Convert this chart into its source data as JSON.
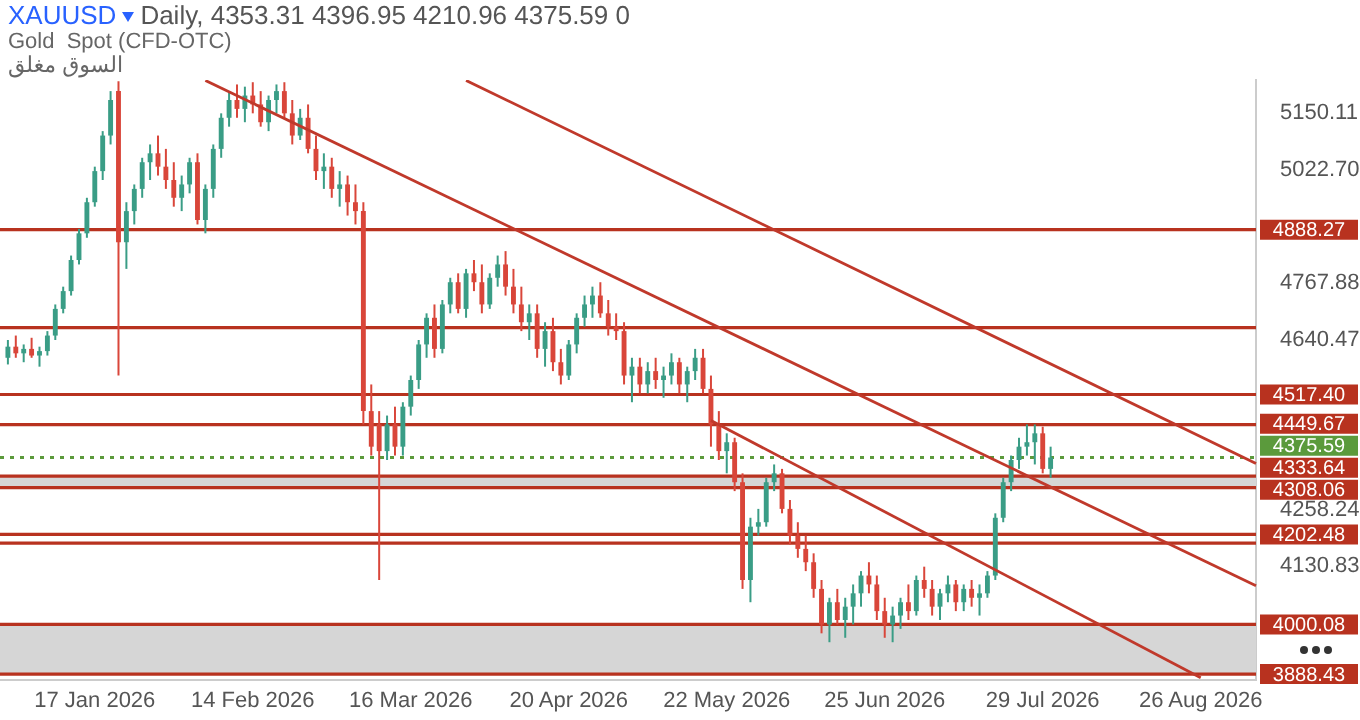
{
  "chart_data": {
    "type": "candlestick",
    "title": "XAUUSD",
    "subtitle": "Daily, 4353.31 4396.95 4210.96 4375.59 0",
    "annotations": [
      "Gold  Spot (CFD-OTC)",
      "السوق مغلق"
    ],
    "categories": [
      null,
      null,
      null,
      null,
      null,
      null,
      null,
      null,
      null,
      null,
      null,
      null,
      "17 Jan 2026",
      null,
      null,
      null,
      null,
      null,
      null,
      null,
      null,
      null,
      null,
      null,
      null,
      null,
      null,
      null,
      null,
      null,
      null,
      null,
      "14 Feb 2026",
      null,
      null,
      null,
      null,
      null,
      null,
      null,
      null,
      null,
      null,
      null,
      null,
      null,
      null,
      null,
      null,
      null,
      null,
      null,
      "16 Mar 2026",
      null,
      null,
      null,
      null,
      null,
      null,
      null,
      null,
      null,
      null,
      null,
      null,
      null,
      null,
      null,
      null,
      null,
      null,
      null,
      "20 Apr 2026",
      null,
      null,
      null,
      null,
      null,
      null,
      null,
      null,
      null,
      null,
      null,
      null,
      null,
      null,
      null,
      null,
      null,
      null,
      null,
      "22 May 2026",
      null,
      null,
      null,
      null,
      null,
      null,
      null,
      null,
      null,
      null,
      null,
      null,
      null,
      null,
      null,
      null,
      null,
      null,
      null,
      "25 Jun 2026",
      null,
      null,
      null,
      null,
      null,
      null,
      null,
      null,
      null,
      null,
      null,
      null,
      null,
      null,
      null,
      null,
      null,
      null,
      null,
      "29 Jul 2026",
      null,
      null,
      null,
      null,
      null,
      null,
      null,
      null,
      null,
      null,
      null,
      null,
      null,
      null,
      null,
      null,
      null,
      null,
      null,
      "26 Aug 2026",
      null,
      null,
      null,
      null,
      null,
      null,
      null
    ],
    "ohlc": [
      null,
      [
        4600,
        4640,
        4585,
        4625
      ],
      [
        4625,
        4650,
        4600,
        4610
      ],
      [
        4610,
        4630,
        4590,
        4620
      ],
      [
        4620,
        4645,
        4600,
        4605
      ],
      [
        4605,
        4625,
        4580,
        4615
      ],
      [
        4615,
        4660,
        4605,
        4650
      ],
      [
        4650,
        4720,
        4640,
        4710
      ],
      [
        4710,
        4760,
        4700,
        4750
      ],
      [
        4750,
        4830,
        4740,
        4820
      ],
      [
        4820,
        4890,
        4810,
        4880
      ],
      [
        4880,
        4960,
        4870,
        4950
      ],
      [
        4950,
        5030,
        4940,
        5020
      ],
      [
        5020,
        5110,
        5000,
        5100
      ],
      [
        5100,
        5200,
        5080,
        5180
      ],
      [
        5200,
        5222,
        4560,
        4860
      ],
      [
        4860,
        4950,
        4800,
        4930
      ],
      [
        4930,
        4990,
        4900,
        4980
      ],
      [
        4980,
        5050,
        4960,
        5040
      ],
      [
        5040,
        5080,
        5000,
        5060
      ],
      [
        5060,
        5100,
        5010,
        5030
      ],
      [
        5030,
        5070,
        4980,
        5000
      ],
      [
        5000,
        5040,
        4940,
        4960
      ],
      [
        4960,
        5010,
        4930,
        4990
      ],
      [
        4990,
        5050,
        4970,
        5040
      ],
      [
        5040,
        5060,
        4900,
        4910
      ],
      [
        4910,
        4990,
        4880,
        4980
      ],
      [
        4980,
        5080,
        4960,
        5070
      ],
      [
        5070,
        5150,
        5050,
        5140
      ],
      [
        5140,
        5200,
        5120,
        5180
      ],
      [
        5180,
        5215,
        5140,
        5160
      ],
      [
        5160,
        5210,
        5130,
        5190
      ],
      [
        5190,
        5220,
        5150,
        5170
      ],
      [
        5170,
        5200,
        5120,
        5130
      ],
      [
        5130,
        5190,
        5110,
        5180
      ],
      [
        5180,
        5215,
        5150,
        5200
      ],
      [
        5200,
        5220,
        5140,
        5150
      ],
      [
        5150,
        5180,
        5080,
        5100
      ],
      [
        5100,
        5160,
        5090,
        5140
      ],
      [
        5140,
        5170,
        5060,
        5070
      ],
      [
        5070,
        5100,
        5000,
        5020
      ],
      [
        5020,
        5060,
        4980,
        5030
      ],
      [
        5030,
        5050,
        4960,
        4980
      ],
      [
        4980,
        5020,
        4940,
        4990
      ],
      [
        4990,
        5010,
        4920,
        4950
      ],
      [
        4950,
        4990,
        4900,
        4930
      ],
      [
        4930,
        4950,
        4450,
        4480
      ],
      [
        4480,
        4540,
        4380,
        4400
      ],
      [
        4450,
        4480,
        4100,
        4390
      ],
      [
        4390,
        4470,
        4370,
        4450
      ],
      [
        4450,
        4490,
        4380,
        4400
      ],
      [
        4400,
        4500,
        4380,
        4490
      ],
      [
        4490,
        4560,
        4470,
        4550
      ],
      [
        4550,
        4640,
        4530,
        4630
      ],
      [
        4630,
        4700,
        4600,
        4690
      ],
      [
        4690,
        4720,
        4600,
        4620
      ],
      [
        4620,
        4730,
        4610,
        4720
      ],
      [
        4720,
        4780,
        4700,
        4770
      ],
      [
        4770,
        4790,
        4700,
        4710
      ],
      [
        4710,
        4800,
        4690,
        4790
      ],
      [
        4790,
        4820,
        4750,
        4770
      ],
      [
        4770,
        4810,
        4700,
        4720
      ],
      [
        4720,
        4790,
        4710,
        4780
      ],
      [
        4780,
        4830,
        4760,
        4810
      ],
      [
        4810,
        4840,
        4740,
        4760
      ],
      [
        4760,
        4800,
        4700,
        4720
      ],
      [
        4720,
        4760,
        4660,
        4680
      ],
      [
        4680,
        4720,
        4640,
        4700
      ],
      [
        4700,
        4720,
        4600,
        4620
      ],
      [
        4620,
        4680,
        4580,
        4660
      ],
      [
        4660,
        4690,
        4570,
        4590
      ],
      [
        4590,
        4620,
        4540,
        4560
      ],
      [
        4560,
        4640,
        4550,
        4630
      ],
      [
        4630,
        4700,
        4610,
        4690
      ],
      [
        4690,
        4740,
        4670,
        4720
      ],
      [
        4720,
        4760,
        4690,
        4740
      ],
      [
        4740,
        4770,
        4690,
        4700
      ],
      [
        4700,
        4730,
        4650,
        4670
      ],
      [
        4670,
        4700,
        4640,
        4660
      ],
      [
        4660,
        4680,
        4540,
        4560
      ],
      [
        4560,
        4600,
        4500,
        4580
      ],
      [
        4580,
        4600,
        4520,
        4540
      ],
      [
        4540,
        4590,
        4520,
        4570
      ],
      [
        4570,
        4600,
        4530,
        4550
      ],
      [
        4550,
        4580,
        4510,
        4560
      ],
      [
        4560,
        4610,
        4540,
        4590
      ],
      [
        4590,
        4600,
        4520,
        4540
      ],
      [
        4540,
        4580,
        4500,
        4570
      ],
      [
        4570,
        4620,
        4550,
        4600
      ],
      [
        4600,
        4620,
        4520,
        4530
      ],
      [
        4530,
        4560,
        4400,
        4450
      ],
      [
        4450,
        4480,
        4370,
        4390
      ],
      [
        4390,
        4430,
        4340,
        4410
      ],
      [
        4410,
        4420,
        4300,
        4320
      ],
      [
        4320,
        4340,
        4080,
        4100
      ],
      [
        4100,
        4240,
        4050,
        4220
      ],
      [
        4220,
        4260,
        4200,
        4230
      ],
      [
        4230,
        4330,
        4220,
        4320
      ],
      [
        4320,
        4360,
        4300,
        4340
      ],
      [
        4340,
        4350,
        4250,
        4260
      ],
      [
        4260,
        4280,
        4180,
        4200
      ],
      [
        4200,
        4230,
        4150,
        4170
      ],
      [
        4170,
        4200,
        4120,
        4140
      ],
      [
        4140,
        4160,
        4060,
        4080
      ],
      [
        4080,
        4100,
        3980,
        4000
      ],
      [
        4000,
        4060,
        3960,
        4050
      ],
      [
        4050,
        4080,
        4000,
        4010
      ],
      [
        4010,
        4060,
        3970,
        4040
      ],
      [
        4040,
        4090,
        4000,
        4070
      ],
      [
        4070,
        4120,
        4040,
        4110
      ],
      [
        4110,
        4140,
        4070,
        4090
      ],
      [
        4090,
        4110,
        4010,
        4030
      ],
      [
        4030,
        4060,
        3970,
        4000
      ],
      [
        4000,
        4040,
        3960,
        4020
      ],
      [
        4020,
        4060,
        3990,
        4050
      ],
      [
        4050,
        4090,
        4010,
        4030
      ],
      [
        4030,
        4110,
        4020,
        4100
      ],
      [
        4100,
        4130,
        4060,
        4080
      ],
      [
        4080,
        4100,
        4020,
        4040
      ],
      [
        4040,
        4080,
        4010,
        4070
      ],
      [
        4070,
        4110,
        4050,
        4090
      ],
      [
        4090,
        4100,
        4030,
        4050
      ],
      [
        4050,
        4090,
        4030,
        4080
      ],
      [
        4080,
        4100,
        4040,
        4060
      ],
      [
        4060,
        4090,
        4020,
        4070
      ],
      [
        4070,
        4120,
        4060,
        4110
      ],
      [
        4110,
        4250,
        4100,
        4240
      ],
      [
        4240,
        4330,
        4230,
        4320
      ],
      [
        4320,
        4380,
        4300,
        4370
      ],
      [
        4370,
        4420,
        4350,
        4400
      ],
      [
        4400,
        4450,
        4380,
        4410
      ],
      [
        4410,
        4450,
        4360,
        4430
      ],
      [
        4430,
        4445,
        4340,
        4350
      ],
      [
        4350,
        4400,
        4330,
        4375.59
      ],
      null,
      null,
      null,
      null,
      null,
      null,
      null,
      null,
      null,
      null,
      null,
      null,
      null,
      null,
      null,
      null,
      null,
      null,
      null,
      null,
      null,
      null,
      null,
      null,
      null,
      null
    ],
    "series": [
      {
        "type": "line",
        "color": "#c0392b",
        "values": [
          null,
          null,
          null,
          null,
          null,
          null,
          null,
          null,
          null,
          null,
          null,
          null,
          null,
          null,
          null,
          null,
          null,
          null,
          null,
          null,
          null,
          null,
          null,
          null,
          null,
          null,
          null,
          null,
          null,
          null,
          null,
          null,
          null,
          null,
          null,
          null,
          null,
          null,
          null,
          null,
          null,
          null,
          null,
          null,
          null,
          null,
          null,
          null,
          null,
          null,
          null,
          null,
          null,
          null,
          null,
          null,
          null,
          null,
          null,
          5224,
          null,
          null,
          null,
          null,
          null,
          null,
          null,
          null,
          null,
          null,
          null,
          null,
          null,
          null,
          null,
          null,
          null,
          null,
          null,
          null,
          null,
          null,
          null,
          null,
          null,
          null,
          null,
          null,
          null,
          null,
          null,
          null,
          null,
          null,
          null,
          null,
          null,
          null,
          null,
          null,
          null,
          null,
          null,
          null,
          null,
          null,
          null,
          null,
          null,
          null,
          null,
          null,
          null,
          null,
          null,
          null,
          null,
          null,
          null,
          null,
          null,
          null,
          null,
          null,
          null,
          null,
          null,
          null,
          null,
          null,
          null,
          null,
          null,
          null,
          null,
          null,
          null,
          null,
          null,
          null,
          null,
          null,
          null,
          null,
          null,
          null,
          null,
          null,
          null,
          null,
          null,
          null,
          null,
          null,
          null,
          null,
          null,
          null,
          null,
          4362
        ]
      },
      {
        "type": "line",
        "color": "#c0392b",
        "values": [
          null,
          null,
          null,
          null,
          null,
          null,
          null,
          null,
          null,
          null,
          null,
          null,
          null,
          null,
          null,
          null,
          null,
          null,
          null,
          null,
          null,
          null,
          null,
          null,
          null,
          null,
          5224,
          null,
          null,
          null,
          null,
          null,
          null,
          null,
          null,
          null,
          null,
          null,
          null,
          null,
          null,
          null,
          null,
          null,
          null,
          null,
          null,
          null,
          null,
          null,
          null,
          null,
          null,
          null,
          null,
          null,
          null,
          null,
          null,
          null,
          null,
          null,
          null,
          null,
          null,
          null,
          null,
          null,
          null,
          null,
          null,
          null,
          null,
          null,
          null,
          null,
          null,
          null,
          null,
          null,
          null,
          null,
          null,
          null,
          null,
          null,
          null,
          null,
          null,
          null,
          null,
          null,
          null,
          null,
          null,
          null,
          null,
          null,
          null,
          null,
          null,
          null,
          null,
          null,
          null,
          null,
          null,
          null,
          null,
          null,
          null,
          null,
          null,
          null,
          null,
          null,
          null,
          null,
          null,
          null,
          null,
          null,
          null,
          null,
          null,
          null,
          null,
          null,
          null,
          null,
          null,
          null,
          null,
          null,
          null,
          null,
          null,
          null,
          null,
          null,
          null,
          null,
          null,
          null,
          null,
          null,
          null,
          null,
          null,
          null,
          null,
          null,
          null,
          null,
          null,
          null,
          null,
          null,
          null,
          4087
        ]
      },
      {
        "type": "line",
        "color": "#c0392b",
        "values": [
          null,
          null,
          null,
          null,
          null,
          null,
          null,
          null,
          null,
          null,
          null,
          null,
          null,
          null,
          null,
          null,
          null,
          null,
          null,
          null,
          null,
          null,
          null,
          null,
          null,
          null,
          null,
          null,
          null,
          null,
          null,
          null,
          null,
          null,
          null,
          null,
          null,
          null,
          null,
          null,
          null,
          null,
          null,
          null,
          null,
          null,
          null,
          null,
          null,
          null,
          null,
          null,
          null,
          null,
          null,
          null,
          null,
          null,
          null,
          null,
          null,
          null,
          null,
          null,
          null,
          null,
          null,
          null,
          null,
          null,
          null,
          null,
          null,
          null,
          null,
          null,
          null,
          null,
          null,
          null,
          null,
          null,
          null,
          null,
          null,
          null,
          null,
          null,
          null,
          null,
          4459,
          null,
          null,
          null,
          null,
          null,
          null,
          null,
          null,
          null,
          null,
          null,
          null,
          null,
          null,
          null,
          null,
          null,
          null,
          null,
          null,
          null,
          null,
          null,
          null,
          null,
          null,
          null,
          null,
          null,
          null,
          null,
          null,
          null,
          null,
          null,
          null,
          null,
          null,
          null,
          null,
          null,
          null,
          null,
          null,
          null,
          null,
          null,
          null,
          null,
          null,
          null,
          null,
          null,
          null,
          null,
          null,
          null,
          null,
          null,
          null,
          null,
          3880,
          null,
          null,
          null,
          null,
          null,
          null,
          null
        ]
      }
    ],
    "ylim": [
      3875,
      5225
    ],
    "yticks": [
      {
        "value": 4130.83,
        "label": "4130.83"
      },
      {
        "value": 4258.24,
        "label": "4258.24"
      },
      {
        "value": 4640.47,
        "label": "4640.47"
      },
      {
        "value": 4767.88,
        "label": "4767.88"
      },
      {
        "value": 5022.7,
        "label": "5022.70"
      },
      {
        "value": 5150.11,
        "label": "5150.11"
      }
    ],
    "bands": [
      {
        "axis": "y",
        "from": 4308.06,
        "to": 4333.64,
        "color": "#d6d6d6"
      },
      {
        "axis": "y",
        "from": 3888.43,
        "to": 4000.08,
        "color": "#d6d6d6"
      }
    ],
    "ref_lines": [
      {
        "axis": "y",
        "value": 4888.27,
        "label": "4888.27",
        "color": "#b8321f"
      },
      {
        "axis": "y",
        "value": 4668,
        "label": null,
        "color": "#b8321f"
      },
      {
        "axis": "y",
        "value": 4517.4,
        "label": "4517.40",
        "color": "#b8321f"
      },
      {
        "axis": "y",
        "value": 4449.67,
        "label": "4449.67",
        "color": "#b8321f"
      },
      {
        "axis": "y",
        "value": 4375.59,
        "label": "4375.59",
        "color": "#5b9a3c",
        "line_style": "dotted"
      },
      {
        "axis": "y",
        "value": 4333.64,
        "label": "4333.64",
        "color": "#b8321f"
      },
      {
        "axis": "y",
        "value": 4308.06,
        "label": "4308.06",
        "color": "#b8321f"
      },
      {
        "axis": "y",
        "value": 4202.48,
        "label": "4202.48",
        "color": "#b8321f"
      },
      {
        "axis": "y",
        "value": 4183,
        "label": null,
        "color": "#b8321f"
      },
      {
        "axis": "y",
        "value": 4000.08,
        "label": "4000.08",
        "color": "#b8321f"
      },
      {
        "axis": "y",
        "value": 3888.43,
        "label": "3888.43",
        "color": "#b8321f"
      }
    ],
    "grid": false,
    "legend": false
  }
}
